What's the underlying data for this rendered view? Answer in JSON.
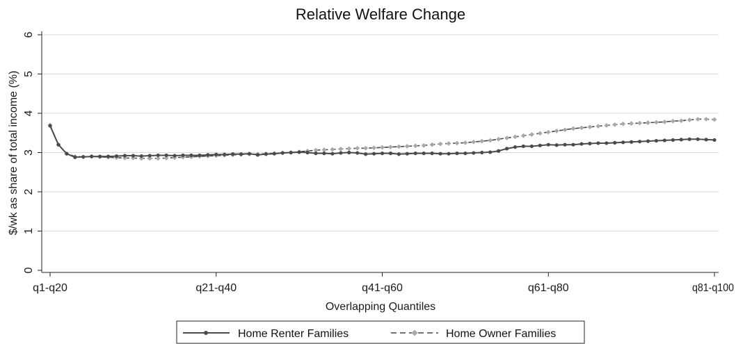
{
  "chart_data": {
    "type": "line",
    "title": "Relative Welfare Change",
    "xlabel": "Overlapping Quantiles",
    "ylabel": "$/wk as share of total income (%)",
    "ylim": [
      0,
      6
    ],
    "yticks": [
      "0",
      "1",
      "2",
      "3",
      "4",
      "5",
      "6"
    ],
    "xlim": [
      1,
      81
    ],
    "xtick_positions": [
      1,
      21,
      41,
      61,
      81
    ],
    "xtick_labels": [
      "q1-q20",
      "q21-q40",
      "q41-q60",
      "q61-q80",
      "q81-q100"
    ],
    "grid": true,
    "legend_position": "bottom",
    "x": [
      1,
      2,
      3,
      4,
      5,
      6,
      7,
      8,
      9,
      10,
      11,
      12,
      13,
      14,
      15,
      16,
      17,
      18,
      19,
      20,
      21,
      22,
      23,
      24,
      25,
      26,
      27,
      28,
      29,
      30,
      31,
      32,
      33,
      34,
      35,
      36,
      37,
      38,
      39,
      40,
      41,
      42,
      43,
      44,
      45,
      46,
      47,
      48,
      49,
      50,
      51,
      52,
      53,
      54,
      55,
      56,
      57,
      58,
      59,
      60,
      61,
      62,
      63,
      64,
      65,
      66,
      67,
      68,
      69,
      70,
      71,
      72,
      73,
      74,
      75,
      76,
      77,
      78,
      79,
      80,
      81
    ],
    "series": [
      {
        "name": "Home Renter Families",
        "color": "#4a4a4a",
        "line_style": "solid",
        "values": [
          3.68,
          3.2,
          2.97,
          2.88,
          2.89,
          2.9,
          2.9,
          2.9,
          2.91,
          2.92,
          2.92,
          2.91,
          2.92,
          2.93,
          2.93,
          2.92,
          2.93,
          2.93,
          2.93,
          2.94,
          2.95,
          2.95,
          2.96,
          2.96,
          2.97,
          2.94,
          2.96,
          2.97,
          2.99,
          3.0,
          3.01,
          3.0,
          2.98,
          2.98,
          2.97,
          2.99,
          3.0,
          2.99,
          2.96,
          2.97,
          2.98,
          2.98,
          2.96,
          2.97,
          2.98,
          2.98,
          2.98,
          2.97,
          2.97,
          2.98,
          2.98,
          2.99,
          3.0,
          3.01,
          3.04,
          3.1,
          3.14,
          3.16,
          3.16,
          3.18,
          3.2,
          3.19,
          3.2,
          3.2,
          3.22,
          3.23,
          3.24,
          3.24,
          3.25,
          3.26,
          3.27,
          3.28,
          3.29,
          3.3,
          3.31,
          3.32,
          3.33,
          3.34,
          3.34,
          3.33,
          3.32
        ]
      },
      {
        "name": "Home Owner Families",
        "color": "#a8a8a8",
        "line_style": "dashed",
        "values": [
          3.7,
          3.2,
          2.97,
          2.9,
          2.89,
          2.9,
          2.89,
          2.88,
          2.87,
          2.86,
          2.86,
          2.85,
          2.85,
          2.85,
          2.86,
          2.87,
          2.88,
          2.89,
          2.9,
          2.91,
          2.92,
          2.93,
          2.94,
          2.95,
          2.96,
          2.96,
          2.97,
          2.98,
          2.99,
          3.0,
          3.02,
          3.04,
          3.06,
          3.07,
          3.08,
          3.09,
          3.1,
          3.11,
          3.11,
          3.12,
          3.13,
          3.14,
          3.15,
          3.16,
          3.17,
          3.18,
          3.2,
          3.22,
          3.23,
          3.24,
          3.25,
          3.27,
          3.29,
          3.31,
          3.34,
          3.37,
          3.4,
          3.43,
          3.46,
          3.49,
          3.52,
          3.55,
          3.58,
          3.61,
          3.63,
          3.65,
          3.67,
          3.69,
          3.71,
          3.73,
          3.74,
          3.75,
          3.76,
          3.77,
          3.78,
          3.8,
          3.81,
          3.83,
          3.85,
          3.85,
          3.84
        ]
      }
    ]
  }
}
